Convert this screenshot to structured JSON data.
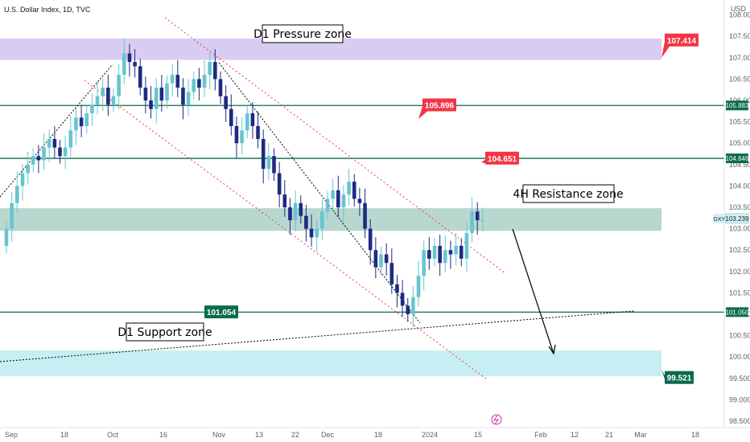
{
  "header": {
    "symbol_title": "U.S. Dollar Index, 1D, TVC"
  },
  "currency": "USD",
  "annotations": {
    "pressure": "D1 Pressure zone",
    "resistance": "4H Resistance zone",
    "support": "D1 Support zone"
  },
  "level_tags": [
    {
      "text": "107.414",
      "value": 107.414,
      "color": "#f23645"
    },
    {
      "text": "105.896",
      "value": 105.896,
      "color": "#f23645"
    },
    {
      "text": "104.651",
      "value": 104.651,
      "color": "#f23645"
    },
    {
      "text": "101.054",
      "value": 101.054,
      "color": "#0b6b4e"
    },
    {
      "text": "99.521",
      "value": 99.521,
      "color": "#0b6b4e"
    }
  ],
  "right_tags": [
    {
      "text": "105.883",
      "value": 105.883,
      "color": "#0b6b4e"
    },
    {
      "text": "104.646",
      "value": 104.646,
      "color": "#0b6b4e"
    },
    {
      "text": "101.050",
      "value": 101.05,
      "color": "#0b6b4e"
    }
  ],
  "price_tag": {
    "symbol": "DXY",
    "text": "103.239",
    "value": 103.239
  },
  "colors": {
    "bull": "#67c5cf",
    "bear": "#1e2a82",
    "level": "#0b6b4e",
    "pressure_zone": "#d8ccf1",
    "resistance_zone": "#b8d8cf",
    "support_zone": "#c7eef2",
    "channel": "#f23645"
  },
  "chart_data": {
    "type": "candlestick",
    "title": "U.S. Dollar Index, 1D, TVC",
    "ylim": [
      98.35,
      108.35
    ],
    "y_ticks": [
      "98.500",
      "99.000",
      "99.500",
      "100.000",
      "100.500",
      "101.000",
      "101.500",
      "102.000",
      "102.500",
      "103.000",
      "103.500",
      "104.000",
      "104.500",
      "105.000",
      "105.500",
      "106.000",
      "106.500",
      "107.000",
      "107.500",
      "108.000"
    ],
    "x_ticks": [
      "Sep",
      "18",
      "Oct",
      "16",
      "Nov",
      "13",
      "22",
      "Dec",
      "18",
      "2024",
      "15",
      "Feb",
      "12",
      "21",
      "Mar",
      "18"
    ],
    "zones": [
      {
        "name": "D1 Pressure zone",
        "from": 106.95,
        "to": 107.45
      },
      {
        "name": "4H Resistance zone",
        "from": 102.95,
        "to": 103.48
      },
      {
        "name": "D1 Support zone",
        "from": 99.55,
        "to": 100.15
      }
    ],
    "levels": [
      105.883,
      104.646,
      101.05
    ],
    "last_price": 103.239,
    "closes": [
      103.0,
      103.6,
      104.0,
      104.3,
      104.5,
      104.7,
      104.6,
      104.9,
      105.1,
      104.9,
      104.7,
      104.9,
      105.3,
      105.6,
      105.4,
      105.7,
      105.9,
      106.1,
      106.3,
      105.9,
      106.1,
      106.6,
      107.1,
      106.9,
      106.8,
      106.3,
      106.0,
      105.8,
      106.3,
      106.0,
      106.4,
      106.6,
      106.3,
      105.9,
      106.2,
      106.5,
      106.3,
      106.6,
      106.9,
      106.5,
      106.1,
      105.8,
      105.4,
      105.0,
      105.3,
      105.7,
      105.4,
      105.1,
      104.4,
      104.7,
      104.3,
      103.8,
      103.5,
      103.2,
      103.6,
      103.3,
      103.0,
      102.8,
      103.0,
      103.4,
      103.7,
      103.9,
      103.5,
      103.8,
      104.1,
      103.7,
      103.6,
      103.0,
      102.5,
      102.1,
      102.4,
      102.2,
      101.7,
      101.5,
      101.2,
      101.0,
      101.4,
      101.9,
      102.5,
      102.3,
      102.6,
      102.2,
      102.5,
      102.4,
      102.6,
      102.3,
      102.9,
      103.4,
      103.2,
      103.2
    ],
    "range_start": "Aug 2023",
    "range_end": "Jan 2024"
  }
}
